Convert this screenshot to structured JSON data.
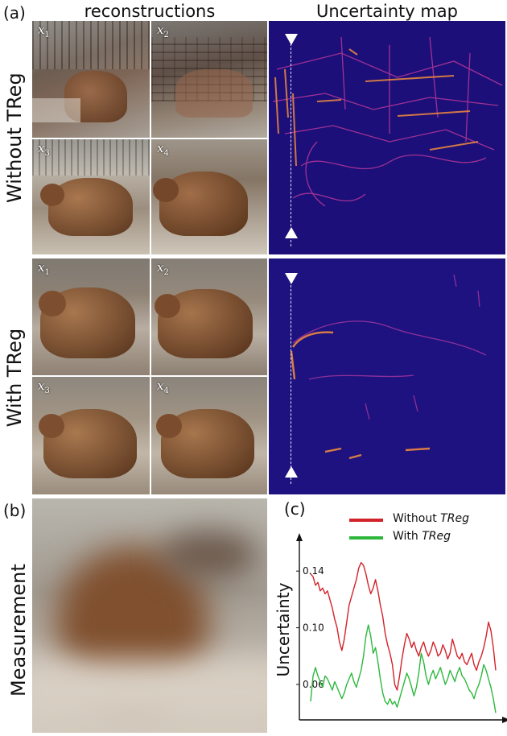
{
  "panel_a": {
    "label": "(a)",
    "col_recon": "reconstructions",
    "col_unc": "Uncertainty  map",
    "row_without": "Without  TReg",
    "row_with": "With  TReg",
    "tile_labels": [
      {
        "base": "x",
        "idx": "1"
      },
      {
        "base": "x",
        "idx": "2"
      },
      {
        "base": "x",
        "idx": "3"
      },
      {
        "base": "x",
        "idx": "4"
      }
    ]
  },
  "panel_b": {
    "label": "(b)",
    "ylabel": "Measurement"
  },
  "panel_c": {
    "label": "(c)"
  },
  "colors": {
    "without": "#d2232a",
    "with": "#2db83d",
    "unc_bg": "#1c0f7a",
    "unc_hot": "#f08a3c"
  },
  "chart_data": {
    "type": "line",
    "ylabel": "Uncertainty",
    "xlabel": "",
    "yticks": [
      0.06,
      0.1,
      0.14
    ],
    "ylim": [
      0.035,
      0.16
    ],
    "xlim": [
      0,
      1
    ],
    "series": [
      {
        "name": "Without TReg",
        "prefix": "Without ",
        "emph": "TReg",
        "values": [
          0.138,
          0.136,
          0.13,
          0.132,
          0.126,
          0.128,
          0.124,
          0.126,
          0.12,
          0.114,
          0.106,
          0.1,
          0.09,
          0.084,
          0.092,
          0.104,
          0.116,
          0.122,
          0.128,
          0.134,
          0.142,
          0.146,
          0.144,
          0.138,
          0.13,
          0.124,
          0.128,
          0.134,
          0.126,
          0.116,
          0.108,
          0.096,
          0.088,
          0.082,
          0.074,
          0.06,
          0.056,
          0.066,
          0.078,
          0.088,
          0.096,
          0.092,
          0.086,
          0.09,
          0.084,
          0.08,
          0.086,
          0.09,
          0.084,
          0.08,
          0.084,
          0.09,
          0.086,
          0.08,
          0.082,
          0.088,
          0.084,
          0.078,
          0.082,
          0.092,
          0.086,
          0.08,
          0.078,
          0.082,
          0.076,
          0.074,
          0.078,
          0.082,
          0.074,
          0.07,
          0.076,
          0.08,
          0.086,
          0.094,
          0.104,
          0.098,
          0.086,
          0.07
        ]
      },
      {
        "name": "With TReg",
        "prefix": "With ",
        "emph": "TReg",
        "values": [
          0.048,
          0.066,
          0.072,
          0.066,
          0.062,
          0.058,
          0.066,
          0.064,
          0.06,
          0.056,
          0.062,
          0.058,
          0.054,
          0.05,
          0.054,
          0.06,
          0.064,
          0.068,
          0.062,
          0.058,
          0.064,
          0.07,
          0.08,
          0.094,
          0.102,
          0.094,
          0.082,
          0.086,
          0.076,
          0.064,
          0.054,
          0.048,
          0.046,
          0.05,
          0.046,
          0.048,
          0.044,
          0.05,
          0.056,
          0.062,
          0.068,
          0.064,
          0.058,
          0.052,
          0.058,
          0.068,
          0.082,
          0.076,
          0.066,
          0.06,
          0.066,
          0.07,
          0.064,
          0.068,
          0.072,
          0.066,
          0.06,
          0.064,
          0.07,
          0.066,
          0.062,
          0.068,
          0.072,
          0.066,
          0.064,
          0.06,
          0.056,
          0.054,
          0.05,
          0.056,
          0.06,
          0.066,
          0.074,
          0.07,
          0.064,
          0.058,
          0.05,
          0.04
        ]
      }
    ]
  }
}
